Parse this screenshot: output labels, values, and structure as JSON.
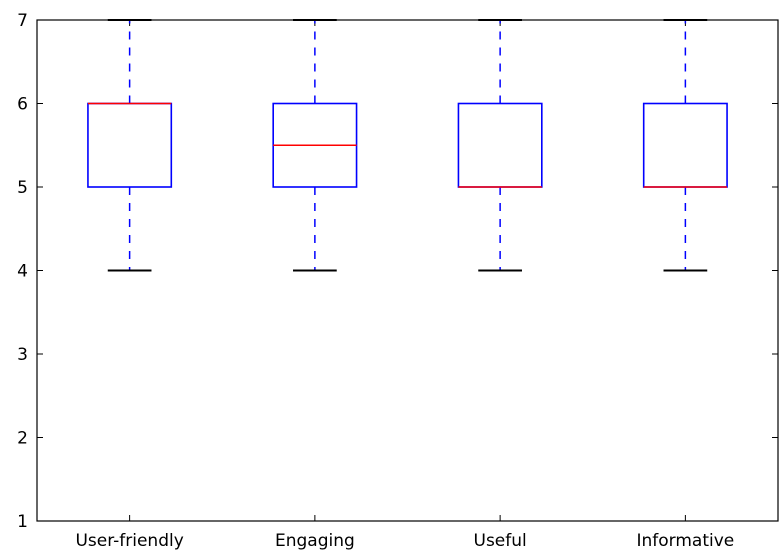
{
  "chart_data": {
    "type": "box",
    "title": "",
    "xlabel": "",
    "ylabel": "",
    "ylim": [
      1,
      7
    ],
    "yticks": [
      1,
      2,
      3,
      4,
      5,
      6,
      7
    ],
    "grid": false,
    "categories": [
      "User-friendly",
      "Engaging",
      "Useful",
      "Informative"
    ],
    "boxes": [
      {
        "name": "User-friendly",
        "whisker_low": 4,
        "q1": 5,
        "median": 6,
        "q3": 6,
        "whisker_high": 7
      },
      {
        "name": "Engaging",
        "whisker_low": 4,
        "q1": 5,
        "median": 5.5,
        "q3": 6,
        "whisker_high": 7
      },
      {
        "name": "Useful",
        "whisker_low": 4,
        "q1": 5,
        "median": 5,
        "q3": 6,
        "whisker_high": 7
      },
      {
        "name": "Informative",
        "whisker_low": 4,
        "q1": 5,
        "median": 5,
        "q3": 6,
        "whisker_high": 7
      }
    ],
    "colors": {
      "box": "#0000ff",
      "whisker": "#0000ff",
      "median": "#ff0000",
      "cap": "#000000",
      "axes": "#000000"
    }
  }
}
